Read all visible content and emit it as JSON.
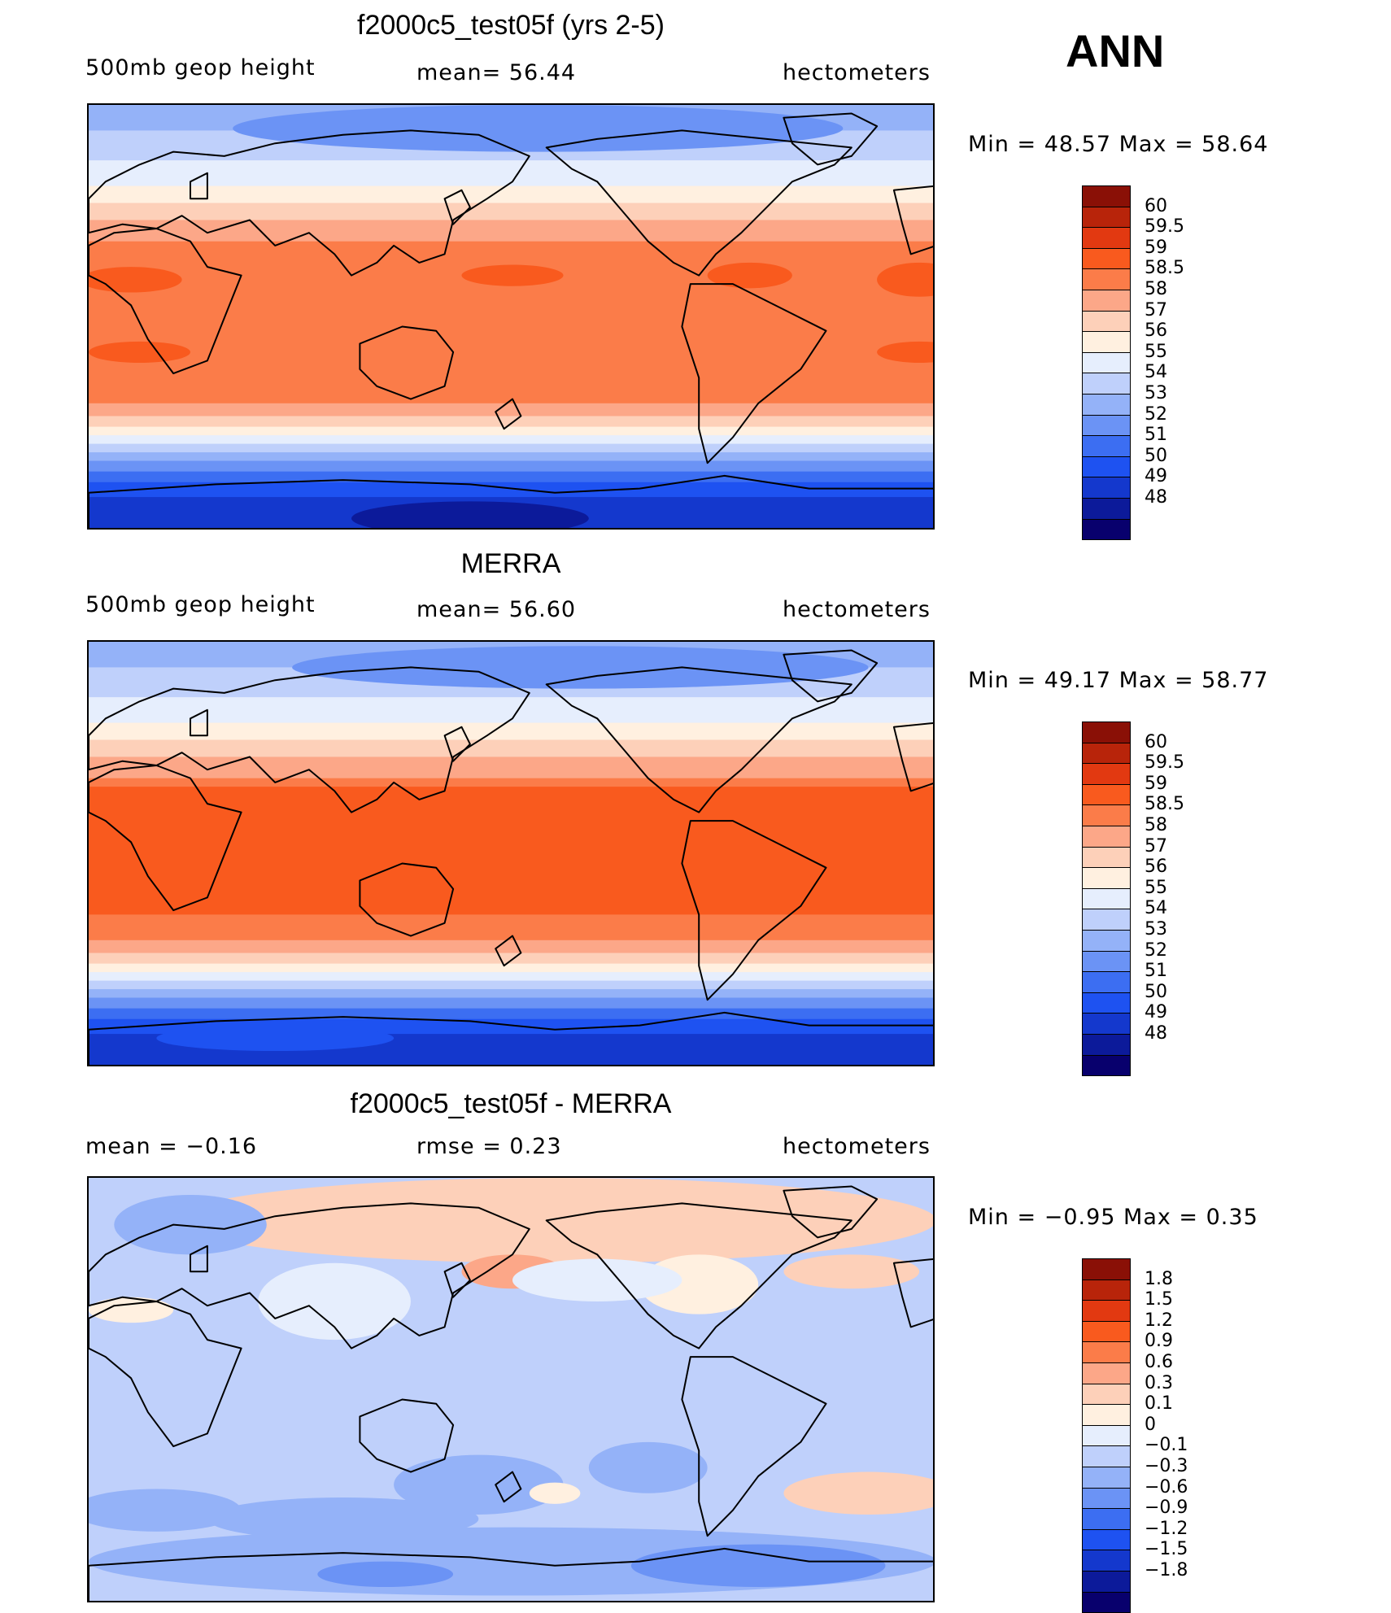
{
  "season": "ANN",
  "colors": {
    "abs_scale": [
      "#08006d",
      "#0c1a9a",
      "#1438cd",
      "#1e52f1",
      "#3c6ef2",
      "#6b93f5",
      "#94b2f8",
      "#bfd0fb",
      "#e6eefd",
      "#fff0e0",
      "#fdd0b9",
      "#fca788",
      "#fb7c49",
      "#f95a1e",
      "#e23911",
      "#b8240a",
      "#8a1006"
    ],
    "diff_scale": [
      "#08006d",
      "#0c1a9a",
      "#1438cd",
      "#1e52f1",
      "#3c6ef2",
      "#6b93f5",
      "#94b2f8",
      "#bfd0fb",
      "#e6eefd",
      "#fff0e0",
      "#fdd0b9",
      "#fca788",
      "#fb7c49",
      "#f95a1e",
      "#e23911",
      "#b8240a",
      "#8a1006"
    ]
  },
  "panels": [
    {
      "title": "f2000c5_test05f (yrs 2-5)",
      "left_label": "500mb  geop  height",
      "center_label": "mean=   56.44",
      "right_label": "hectometers",
      "minmax": "Min  =    48.57  Max  =    58.64",
      "levels": [
        "60",
        "59.5",
        "59",
        "58.5",
        "58",
        "57",
        "56",
        "55",
        "54",
        "53",
        "52",
        "51",
        "50",
        "49",
        "48"
      ],
      "kind": "abs1"
    },
    {
      "title": "MERRA",
      "left_label": "500mb  geop  height",
      "center_label": "mean=   56.60",
      "right_label": "hectometers",
      "minmax": "Min  =    49.17  Max  =    58.77",
      "levels": [
        "60",
        "59.5",
        "59",
        "58.5",
        "58",
        "57",
        "56",
        "55",
        "54",
        "53",
        "52",
        "51",
        "50",
        "49",
        "48"
      ],
      "kind": "abs2"
    },
    {
      "title": "f2000c5_test05f - MERRA",
      "left_label": "mean  =    −0.16",
      "center_label": "rmse  =     0.23",
      "right_label": "hectometers",
      "minmax": "Min  =    −0.95  Max  =     0.35",
      "levels": [
        "1.8",
        "1.5",
        "1.2",
        "0.9",
        "0.6",
        "0.3",
        "0.1",
        "0",
        "−0.1",
        "−0.3",
        "−0.6",
        "−0.9",
        "−1.2",
        "−1.5",
        "−1.8"
      ],
      "kind": "diff"
    }
  ]
}
